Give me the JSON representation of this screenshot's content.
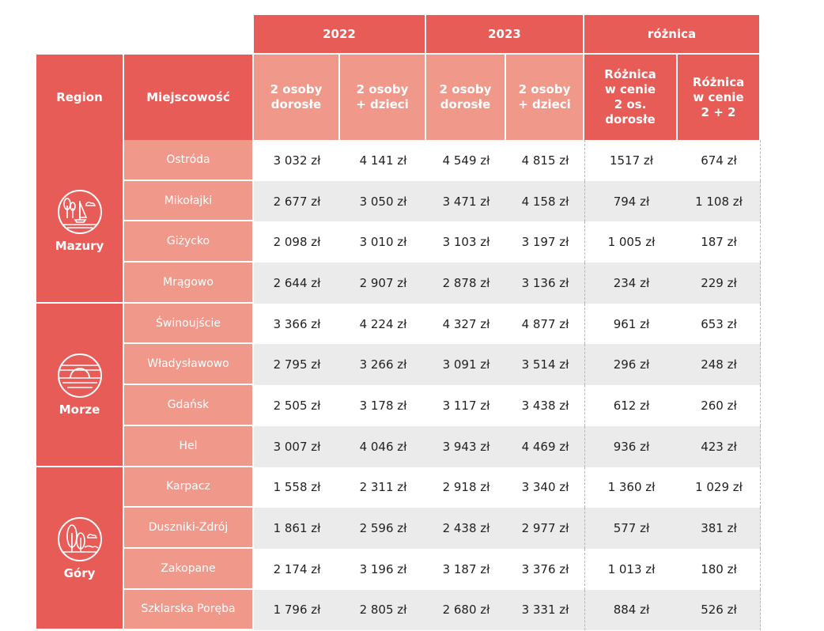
{
  "header": {
    "years": [
      "2022",
      "2023",
      "różnica"
    ],
    "region_label": "Region",
    "town_label": "Miejscowość",
    "sub_2022": [
      [
        "2 osoby",
        "dorosłe"
      ],
      [
        "2 osoby",
        "+ dzieci"
      ]
    ],
    "sub_2023": [
      [
        "2 osoby",
        "dorosłe"
      ],
      [
        "2 osoby",
        "+ dzieci"
      ]
    ],
    "sub_diff": [
      [
        "Różnica",
        "w cenie",
        "2 os.",
        "dorosłe"
      ],
      [
        "Różnica",
        "w cenie",
        "2 + 2"
      ]
    ]
  },
  "colors": {
    "accent": "#e85c58",
    "accent_light": "#f0988a",
    "row_alt": "#ebebeb"
  },
  "regions": [
    {
      "name": "Mazury",
      "icon": "lake-sailboat-icon",
      "rows": [
        {
          "town": "Ostróda",
          "v": [
            "3 032 zł",
            "4 141 zł",
            "4 549 zł",
            "4 815 zł",
            "1517 zł",
            "674 zł"
          ]
        },
        {
          "town": "Mikołajki",
          "v": [
            "2 677 zł",
            "3 050 zł",
            "3 471 zł",
            "4 158 zł",
            "794 zł",
            "1 108 zł"
          ]
        },
        {
          "town": "Giżycko",
          "v": [
            "2 098 zł",
            "3 010 zł",
            "3 103 zł",
            "3 197 zł",
            "1 005 zł",
            "187 zł"
          ]
        },
        {
          "town": "Mrągowo",
          "v": [
            "2 644 zł",
            "2 907 zł",
            "2 878 zł",
            "3 136 zł",
            "234 zł",
            "229 zł"
          ]
        }
      ]
    },
    {
      "name": "Morze",
      "icon": "sunset-sea-icon",
      "rows": [
        {
          "town": "Świnoujście",
          "v": [
            "3 366 zł",
            "4 224 zł",
            "4 327 zł",
            "4 877 zł",
            "961 zł",
            "653 zł"
          ]
        },
        {
          "town": "Władysławowo",
          "v": [
            "2 795 zł",
            "3 266 zł",
            "3 091 zł",
            "3 514 zł",
            "296 zł",
            "248 zł"
          ]
        },
        {
          "town": "Gdańsk",
          "v": [
            "2 505 zł",
            "3 178 zł",
            "3 117 zł",
            "3 438 zł",
            "612 zł",
            "260 zł"
          ]
        },
        {
          "town": "Hel",
          "v": [
            "3 007 zł",
            "4 046 zł",
            "3 943 zł",
            "4 469 zł",
            "936 zł",
            "423 zł"
          ]
        }
      ]
    },
    {
      "name": "Góry",
      "icon": "mountain-trees-icon",
      "rows": [
        {
          "town": "Karpacz",
          "v": [
            "1 558 zł",
            "2 311 zł",
            "2 918 zł",
            "3 340 zł",
            "1 360 zł",
            "1 029 zł"
          ]
        },
        {
          "town": "Duszniki-Zdrój",
          "v": [
            "1 861 zł",
            "2 596 zł",
            "2 438 zł",
            "2 977 zł",
            "577 zł",
            "381 zł"
          ]
        },
        {
          "town": "Zakopane",
          "v": [
            "2 174 zł",
            "3 196 zł",
            "3 187 zł",
            "3 376 zł",
            "1 013 zł",
            "180 zł"
          ]
        },
        {
          "town": "Szklarska Poręba",
          "v": [
            "1 796 zł",
            "2 805 zł",
            "2 680 zł",
            "3 331 zł",
            "884 zł",
            "526 zł"
          ]
        }
      ]
    }
  ]
}
